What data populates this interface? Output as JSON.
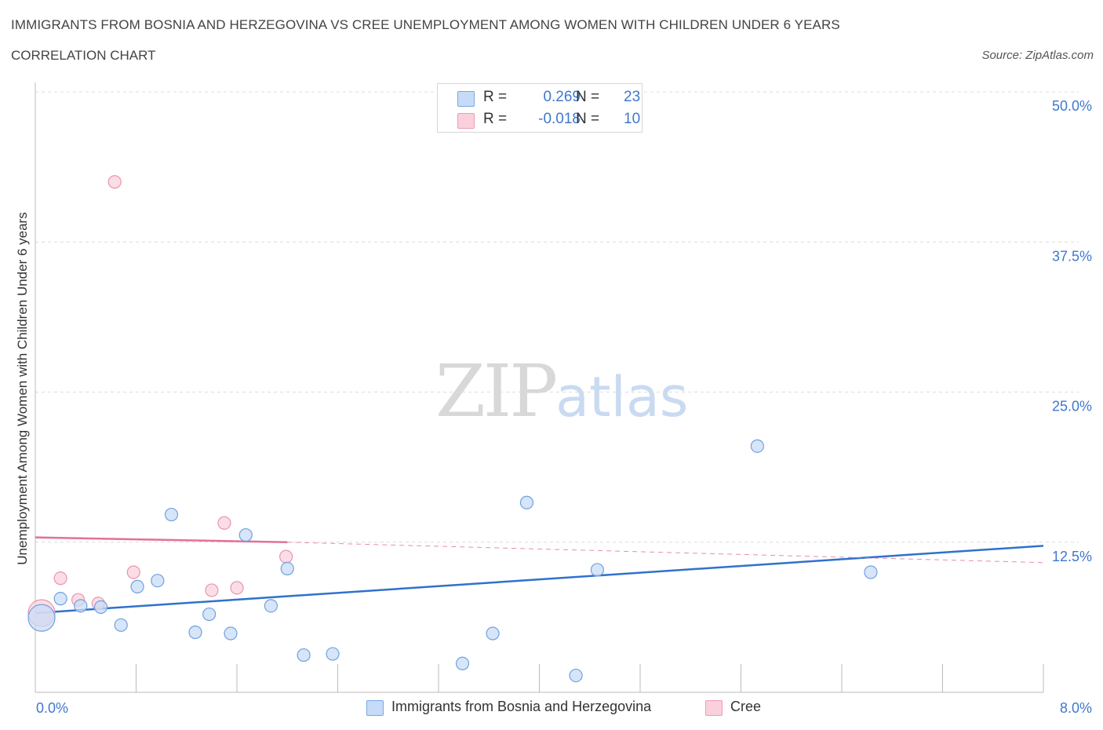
{
  "header": {
    "title": "IMMIGRANTS FROM BOSNIA AND HERZEGOVINA VS CREE UNEMPLOYMENT AMONG WOMEN WITH CHILDREN UNDER 6 YEARS",
    "subtitle": "CORRELATION CHART",
    "source": "Source: ZipAtlas.com"
  },
  "watermark": {
    "part1": "ZIP",
    "part2": "atlas"
  },
  "legend_top": [
    {
      "r_label": "R =",
      "r_value": "0.269",
      "n_label": "N =",
      "n_value": "23",
      "color": "#b9d3f5"
    },
    {
      "r_label": "R =",
      "r_value": "-0.018",
      "n_label": "N =",
      "n_value": "10",
      "color": "#f8c4d3"
    }
  ],
  "chart_data": {
    "type": "scatter",
    "title": "IMMIGRANTS FROM BOSNIA AND HERZEGOVINA VS CREE UNEMPLOYMENT AMONG WOMEN WITH CHILDREN UNDER 6 YEARS",
    "xlabel": "",
    "ylabel": "Unemployment Among Women with Children Under 6 years",
    "xlim": [
      0,
      8
    ],
    "ylim": [
      0,
      50
    ],
    "x_ticks": [
      "0.0%",
      "8.0%"
    ],
    "y_ticks": [
      "12.5%",
      "25.0%",
      "37.5%",
      "50.0%"
    ],
    "y_tick_values": [
      12.5,
      25.0,
      37.5,
      50.0
    ],
    "grid": true,
    "legend_position": "bottom",
    "series": [
      {
        "name": "Immigrants from Bosnia and Herzegovina",
        "color": "#6fa1e0",
        "fill": "#c9dcf5",
        "trend_color": "#2f72cc",
        "trend": {
          "x0": 0.0,
          "y0": 6.6,
          "x1": 8.0,
          "y1": 12.2
        },
        "points": [
          {
            "x": 0.05,
            "y": 6.2,
            "big": true
          },
          {
            "x": 0.2,
            "y": 7.8
          },
          {
            "x": 0.36,
            "y": 7.2
          },
          {
            "x": 0.52,
            "y": 7.1
          },
          {
            "x": 0.68,
            "y": 5.6
          },
          {
            "x": 0.81,
            "y": 8.8
          },
          {
            "x": 0.97,
            "y": 9.3
          },
          {
            "x": 1.08,
            "y": 14.8
          },
          {
            "x": 1.27,
            "y": 5.0
          },
          {
            "x": 1.38,
            "y": 6.5
          },
          {
            "x": 1.55,
            "y": 4.9
          },
          {
            "x": 1.67,
            "y": 13.1
          },
          {
            "x": 1.87,
            "y": 7.2
          },
          {
            "x": 2.0,
            "y": 10.3
          },
          {
            "x": 2.13,
            "y": 3.1
          },
          {
            "x": 2.36,
            "y": 3.2
          },
          {
            "x": 3.39,
            "y": 2.4
          },
          {
            "x": 3.63,
            "y": 4.9
          },
          {
            "x": 3.9,
            "y": 15.8
          },
          {
            "x": 4.29,
            "y": 1.4
          },
          {
            "x": 4.46,
            "y": 10.2
          },
          {
            "x": 5.73,
            "y": 20.5
          },
          {
            "x": 6.63,
            "y": 10.0
          }
        ]
      },
      {
        "name": "Cree",
        "color": "#e995ad",
        "fill": "#f9d1dc",
        "trend_color": "#e3709a",
        "trend": {
          "x0": 0.0,
          "y0": 12.9,
          "x1": 2.0,
          "y1": 12.5,
          "dash_to_x": 8.0,
          "dash_to_y": 10.8
        },
        "points": [
          {
            "x": 0.05,
            "y": 6.6,
            "big": true
          },
          {
            "x": 0.2,
            "y": 9.5
          },
          {
            "x": 0.34,
            "y": 7.7
          },
          {
            "x": 0.5,
            "y": 7.4
          },
          {
            "x": 0.63,
            "y": 42.5
          },
          {
            "x": 0.78,
            "y": 10.0
          },
          {
            "x": 1.4,
            "y": 8.5
          },
          {
            "x": 1.5,
            "y": 14.1
          },
          {
            "x": 1.6,
            "y": 8.7
          },
          {
            "x": 1.99,
            "y": 11.3
          }
        ]
      }
    ]
  },
  "legend_bottom": [
    {
      "label": "Immigrants from Bosnia and Herzegovina",
      "color": "#b9d3f5"
    },
    {
      "label": "Cree",
      "color": "#f8c4d3"
    }
  ]
}
